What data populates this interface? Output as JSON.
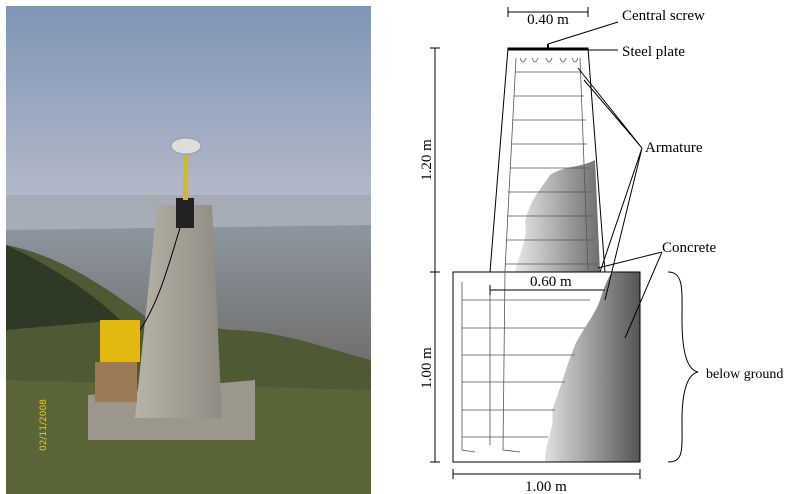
{
  "photo": {
    "date_stamp": "02/11/2008"
  },
  "diagram": {
    "top_width": "0.40 m",
    "central_screw": "Central screw",
    "steel_plate": "Steel plate",
    "armature": "Armature",
    "upper_height": "1.20 m",
    "concrete": "Concrete",
    "middle_width": "0.60 m",
    "lower_height": "1.00 m",
    "below_ground": "below ground",
    "bottom_width": "1.00 m"
  }
}
